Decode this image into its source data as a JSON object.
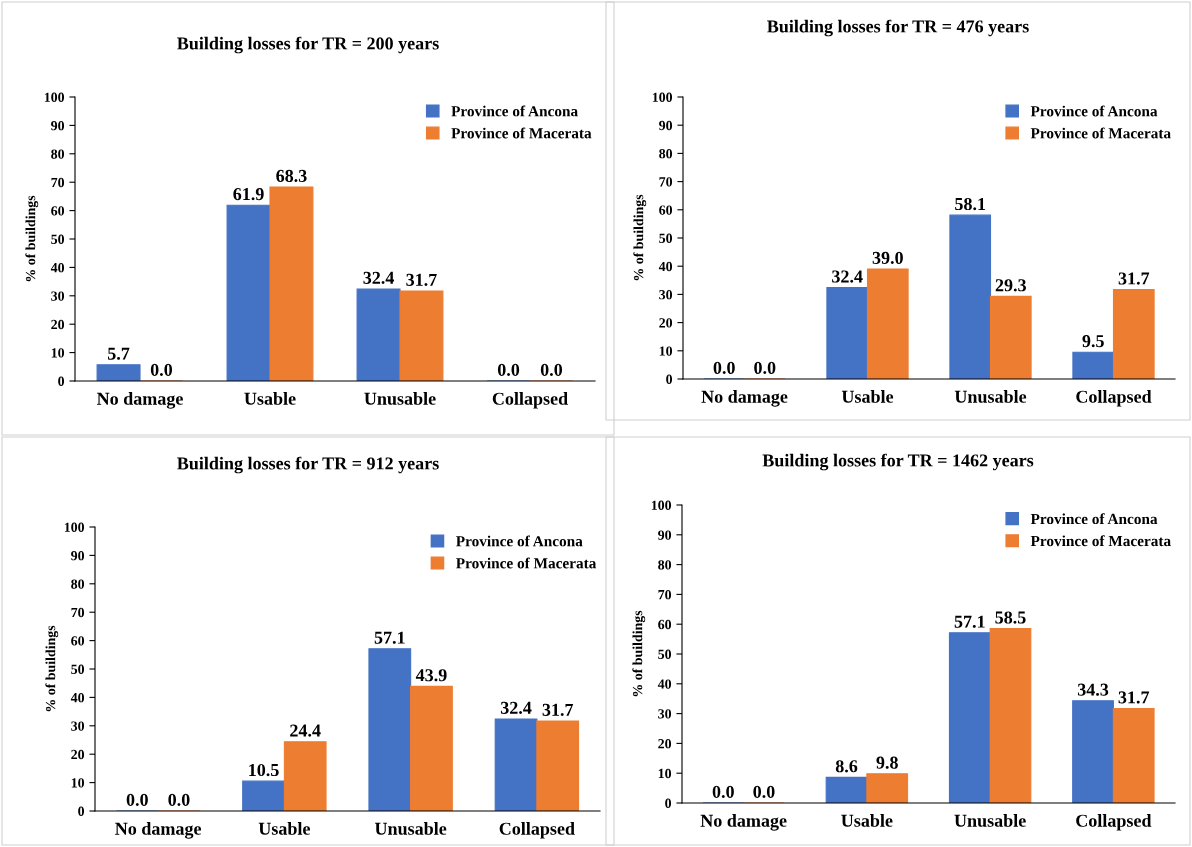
{
  "chart_data": [
    {
      "type": "bar",
      "title": "Building losses for TR = 200 years",
      "ylabel": "% of buildings",
      "categories": [
        "No damage",
        "Usable",
        "Unusable",
        "Collapsed"
      ],
      "ylim": [
        0,
        100
      ],
      "yticks": [
        0,
        10,
        20,
        30,
        40,
        50,
        60,
        70,
        80,
        90,
        100
      ],
      "grid": false,
      "legend": "top right",
      "series": [
        {
          "name": "Province of Ancona",
          "color": "#4472c4",
          "values": [
            5.7,
            61.9,
            32.4,
            0.0
          ],
          "value_labels": [
            "5.7",
            "61.9",
            "32.4",
            "0.0"
          ]
        },
        {
          "name": "Province of Macerata",
          "color": "#ed7d31",
          "values": [
            0.0,
            68.3,
            31.7,
            0.0
          ],
          "value_labels": [
            "0.0",
            "68.3",
            "31.7",
            "0.0"
          ]
        }
      ]
    },
    {
      "type": "bar",
      "title": "Building losses for TR = 476 years",
      "ylabel": "% of buildings",
      "categories": [
        "No damage",
        "Usable",
        "Unusable",
        "Collapsed"
      ],
      "ylim": [
        0,
        100
      ],
      "yticks": [
        0,
        10,
        20,
        30,
        40,
        50,
        60,
        70,
        80,
        90,
        100
      ],
      "grid": false,
      "legend": "top right",
      "series": [
        {
          "name": "Province of Ancona",
          "color": "#4472c4",
          "values": [
            0.0,
            32.4,
            58.1,
            9.5
          ],
          "value_labels": [
            "0.0",
            "32.4",
            "58.1",
            "9.5"
          ]
        },
        {
          "name": "Province of Macerata",
          "color": "#ed7d31",
          "values": [
            0.0,
            39.0,
            29.3,
            31.7
          ],
          "value_labels": [
            "0.0",
            "39.0",
            "29.3",
            "31.7"
          ]
        }
      ]
    },
    {
      "type": "bar",
      "title": "Building losses for TR = 912 years",
      "ylabel": "% of buildings",
      "categories": [
        "No damage",
        "Usable",
        "Unusable",
        "Collapsed"
      ],
      "ylim": [
        0,
        100
      ],
      "yticks": [
        0,
        10,
        20,
        30,
        40,
        50,
        60,
        70,
        80,
        90,
        100
      ],
      "grid": false,
      "legend": "top right",
      "series": [
        {
          "name": "Province of Ancona",
          "color": "#4472c4",
          "values": [
            0.0,
            10.5,
            57.1,
            32.4
          ],
          "value_labels": [
            "0.0",
            "10.5",
            "57.1",
            "32.4"
          ]
        },
        {
          "name": "Province of Macerata",
          "color": "#ed7d31",
          "values": [
            0.0,
            24.4,
            43.9,
            31.7
          ],
          "value_labels": [
            "0.0",
            "24.4",
            "43.9",
            "31.7"
          ]
        }
      ]
    },
    {
      "type": "bar",
      "title": "Building losses for TR = 1462 years",
      "ylabel": "% of buildings",
      "categories": [
        "No damage",
        "Usable",
        "Unusable",
        "Collapsed"
      ],
      "ylim": [
        0,
        100
      ],
      "yticks": [
        0,
        10,
        20,
        30,
        40,
        50,
        60,
        70,
        80,
        90,
        100
      ],
      "grid": false,
      "legend": "top right",
      "series": [
        {
          "name": "Province of Ancona",
          "color": "#4472c4",
          "values": [
            0.0,
            8.6,
            57.1,
            34.3
          ],
          "value_labels": [
            "0.0",
            "8.6",
            "57.1",
            "34.3"
          ]
        },
        {
          "name": "Province of Macerata",
          "color": "#ed7d31",
          "values": [
            0.0,
            9.8,
            58.5,
            31.7
          ],
          "value_labels": [
            "0.0",
            "9.8",
            "58.5",
            "31.7"
          ]
        }
      ]
    }
  ]
}
